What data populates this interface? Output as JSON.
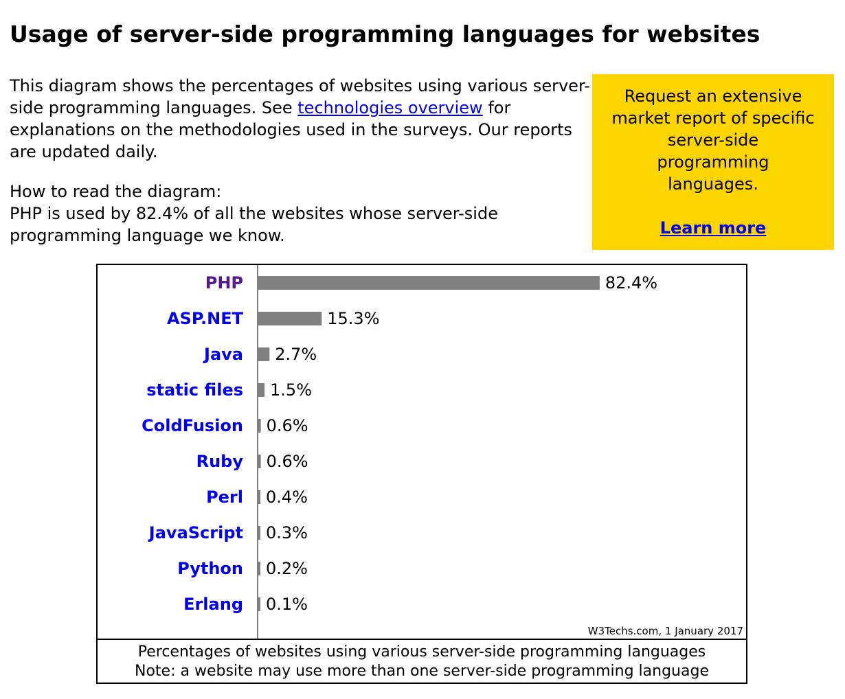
{
  "page": {
    "title": "Usage of server-side programming languages for websites",
    "intro": {
      "text_before_link": "This diagram shows the percentages of websites using various server-side programming languages. See ",
      "link_text": "technologies overview",
      "text_after_link": " for explanations on the methodologies used in the surveys. Our reports are updated daily.",
      "how_to_heading": "How to read the diagram:",
      "how_to_text": "PHP is used by 82.4% of all the websites whose server-side programming language we know."
    },
    "promo": {
      "text": "Request an extensive market report of specific server-side programming languages.",
      "link": "Learn more",
      "background": "#ffd500"
    }
  },
  "chart_data": {
    "type": "bar",
    "orientation": "horizontal",
    "categories": [
      "PHP",
      "ASP.NET",
      "Java",
      "static files",
      "ColdFusion",
      "Ruby",
      "Perl",
      "JavaScript",
      "Python",
      "Erlang"
    ],
    "values": [
      82.4,
      15.3,
      2.7,
      1.5,
      0.6,
      0.6,
      0.4,
      0.3,
      0.2,
      0.1
    ],
    "value_labels": [
      "82.4%",
      "15.3%",
      "2.7%",
      "1.5%",
      "0.6%",
      "0.6%",
      "0.4%",
      "0.3%",
      "0.2%",
      "0.1%"
    ],
    "visited_category": "PHP",
    "unit": "%",
    "xlim": [
      0,
      100
    ],
    "source": "W3Techs.com, 1 January 2017",
    "caption_line1": "Percentages of websites using various server-side programming languages",
    "caption_line2": "Note: a website may use more than one server-side programming language",
    "colors": {
      "bar": "#808080",
      "label_link": "#0000ee",
      "label_visited": "#551a8b",
      "axis": "#808080"
    }
  }
}
